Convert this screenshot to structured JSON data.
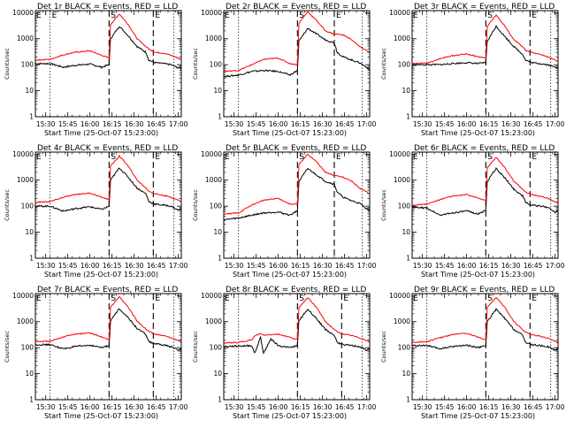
{
  "figure": {
    "common": {
      "ylabel": "Counts/sec",
      "xlabel": "Start Time (25-Oct-07 15:23:00)",
      "x_tick_labels": [
        "15:30",
        "15:45",
        "16:00",
        "16:15",
        "16:30",
        "16:45",
        "17:00"
      ],
      "y_tick_labels": [
        "1",
        "10",
        "100",
        "1000",
        "10000"
      ],
      "marker_labels": [
        "E",
        "S",
        "E"
      ],
      "colors": {
        "events": "#000000",
        "lld": "#ff0000",
        "axes": "#000000"
      }
    },
    "panels": [
      {
        "title": "Det 1r BLACK = Events, RED = LLD"
      },
      {
        "title": "Det 2r BLACK = Events, RED = LLD"
      },
      {
        "title": "Det 3r BLACK = Events, RED = LLD"
      },
      {
        "title": "Det 4r BLACK = Events, RED = LLD"
      },
      {
        "title": "Det 5r BLACK = Events, RED = LLD"
      },
      {
        "title": "Det 6r BLACK = Events, RED = LLD"
      },
      {
        "title": "Det 7r BLACK = Events, RED = LLD"
      },
      {
        "title": "Det 8r BLACK = Events, RED = LLD"
      },
      {
        "title": "Det 9r BLACK = Events, RED = LLD"
      }
    ]
  },
  "chart_data": [
    {
      "type": "line",
      "title": "Det 1r BLACK = Events, RED = LLD",
      "xlabel": "Start Time (25-Oct-07 15:23:00)",
      "ylabel": "Counts/sec",
      "y_scale": "log",
      "ylim": [
        1,
        12000
      ],
      "xlim": [
        "15:23",
        "17:02"
      ],
      "x": [
        "15:23",
        "15:33",
        "15:42",
        "15:50",
        "16:00",
        "16:08",
        "16:13",
        "16:14",
        "16:20",
        "16:26",
        "16:32",
        "16:38",
        "16:40",
        "16:44",
        "16:50",
        "16:55",
        "17:00",
        "17:02"
      ],
      "series": [
        {
          "name": "BLACK = Events",
          "values": [
            110,
            110,
            80,
            95,
            105,
            80,
            100,
            1000,
            3000,
            1300,
            500,
            300,
            150,
            120,
            110,
            100,
            75,
            80
          ]
        },
        {
          "name": "RED = LLD",
          "values": [
            150,
            160,
            240,
            300,
            340,
            230,
            180,
            3500,
            9000,
            3500,
            1000,
            500,
            400,
            300,
            280,
            230,
            180,
            150
          ]
        }
      ],
      "vlines": [
        {
          "time": "15:33",
          "style": "dotted",
          "label": "E"
        },
        {
          "time": "16:13",
          "style": "dashed",
          "label": "S"
        },
        {
          "time": "16:43",
          "style": "dashed",
          "label": "E"
        },
        {
          "time": "16:57",
          "style": "dotted"
        }
      ]
    },
    {
      "type": "line",
      "title": "Det 2r BLACK = Events, RED = LLD",
      "xlabel": "Start Time (25-Oct-07 15:23:00)",
      "ylabel": "Counts/sec",
      "y_scale": "log",
      "ylim": [
        1,
        12000
      ],
      "xlim": [
        "15:23",
        "17:02"
      ],
      "x": [
        "15:23",
        "15:33",
        "15:42",
        "15:50",
        "16:00",
        "16:08",
        "16:13",
        "16:14",
        "16:20",
        "16:26",
        "16:32",
        "16:38",
        "16:40",
        "16:44",
        "16:50",
        "16:55",
        "17:00",
        "17:02"
      ],
      "series": [
        {
          "name": "BLACK = Events",
          "values": [
            35,
            40,
            55,
            60,
            55,
            40,
            60,
            800,
            2500,
            1500,
            900,
            700,
            300,
            200,
            150,
            120,
            80,
            60
          ]
        },
        {
          "name": "RED = LLD",
          "values": [
            55,
            60,
            100,
            160,
            180,
            110,
            100,
            4000,
            11000,
            5000,
            2000,
            1500,
            1500,
            1400,
            900,
            500,
            350,
            300
          ]
        }
      ],
      "vlines": [
        {
          "time": "15:33",
          "style": "dotted"
        },
        {
          "time": "16:13",
          "style": "dashed",
          "label": "S"
        },
        {
          "time": "16:38",
          "style": "dashed",
          "label": "E"
        },
        {
          "time": "16:57",
          "style": "dotted"
        }
      ]
    },
    {
      "type": "line",
      "title": "Det 3r BLACK = Events, RED = LLD",
      "xlabel": "Start Time (25-Oct-07 15:23:00)",
      "ylabel": "Counts/sec",
      "y_scale": "log",
      "ylim": [
        1,
        12000
      ],
      "xlim": [
        "15:23",
        "17:02"
      ],
      "x": [
        "15:23",
        "15:33",
        "15:42",
        "15:50",
        "16:00",
        "16:08",
        "16:13",
        "16:14",
        "16:20",
        "16:26",
        "16:32",
        "16:38",
        "16:40",
        "16:44",
        "16:50",
        "16:55",
        "17:00",
        "17:02"
      ],
      "series": [
        {
          "name": "BLACK = Events",
          "values": [
            100,
            100,
            100,
            110,
            120,
            110,
            120,
            800,
            3000,
            1200,
            500,
            250,
            150,
            120,
            110,
            100,
            80,
            80
          ]
        },
        {
          "name": "RED = LLD",
          "values": [
            110,
            115,
            170,
            220,
            260,
            200,
            180,
            3000,
            8000,
            3000,
            900,
            500,
            350,
            300,
            250,
            200,
            150,
            130
          ]
        }
      ],
      "vlines": [
        {
          "time": "15:33",
          "style": "dotted"
        },
        {
          "time": "16:13",
          "style": "dashed",
          "label": "S"
        },
        {
          "time": "16:43",
          "style": "dashed",
          "label": "E"
        },
        {
          "time": "16:57",
          "style": "dotted"
        }
      ]
    },
    {
      "type": "line",
      "title": "Det 4r BLACK = Events, RED = LLD",
      "xlabel": "Start Time (25-Oct-07 15:23:00)",
      "ylabel": "Counts/sec",
      "y_scale": "log",
      "ylim": [
        1,
        12000
      ],
      "xlim": [
        "15:23",
        "17:02"
      ],
      "x": [
        "15:23",
        "15:33",
        "15:42",
        "15:50",
        "16:00",
        "16:08",
        "16:13",
        "16:14",
        "16:20",
        "16:26",
        "16:32",
        "16:38",
        "16:40",
        "16:44",
        "16:50",
        "16:55",
        "17:00",
        "17:02"
      ],
      "series": [
        {
          "name": "BLACK = Events",
          "values": [
            100,
            100,
            65,
            80,
            95,
            75,
            100,
            1000,
            3000,
            1300,
            500,
            300,
            150,
            120,
            110,
            100,
            70,
            80
          ]
        },
        {
          "name": "RED = LLD",
          "values": [
            140,
            150,
            220,
            280,
            320,
            220,
            180,
            3500,
            8500,
            3500,
            1000,
            500,
            380,
            300,
            260,
            220,
            170,
            150
          ]
        }
      ],
      "vlines": [
        {
          "time": "15:33",
          "style": "dotted"
        },
        {
          "time": "16:13",
          "style": "dashed",
          "label": "S"
        },
        {
          "time": "16:43",
          "style": "dashed",
          "label": "E"
        },
        {
          "time": "16:57",
          "style": "dotted"
        }
      ]
    },
    {
      "type": "line",
      "title": "Det 5r BLACK = Events, RED = LLD",
      "xlabel": "Start Time (25-Oct-07 15:23:00)",
      "ylabel": "Counts/sec",
      "y_scale": "log",
      "ylim": [
        1,
        12000
      ],
      "xlim": [
        "15:23",
        "17:02"
      ],
      "x": [
        "15:23",
        "15:33",
        "15:42",
        "15:50",
        "16:00",
        "16:08",
        "16:13",
        "16:14",
        "16:20",
        "16:26",
        "16:32",
        "16:38",
        "16:40",
        "16:44",
        "16:50",
        "16:55",
        "17:00",
        "17:02"
      ],
      "series": [
        {
          "name": "BLACK = Events",
          "values": [
            30,
            35,
            45,
            55,
            60,
            45,
            70,
            900,
            2800,
            1600,
            900,
            700,
            350,
            220,
            160,
            130,
            80,
            70
          ]
        },
        {
          "name": "RED = LLD",
          "values": [
            50,
            55,
            110,
            170,
            200,
            120,
            120,
            4000,
            10000,
            5000,
            2000,
            1500,
            1500,
            1300,
            900,
            500,
            350,
            300
          ]
        }
      ],
      "vlines": [
        {
          "time": "15:33",
          "style": "dotted"
        },
        {
          "time": "16:13",
          "style": "dashed",
          "label": "S"
        },
        {
          "time": "16:38",
          "style": "dashed",
          "label": "E"
        },
        {
          "time": "16:57",
          "style": "dotted"
        }
      ]
    },
    {
      "type": "line",
      "title": "Det 6r BLACK = Events, RED = LLD",
      "xlabel": "Start Time (25-Oct-07 15:23:00)",
      "ylabel": "Counts/sec",
      "y_scale": "log",
      "ylim": [
        1,
        12000
      ],
      "xlim": [
        "15:23",
        "17:02"
      ],
      "x": [
        "15:23",
        "15:33",
        "15:42",
        "15:50",
        "16:00",
        "16:08",
        "16:13",
        "16:14",
        "16:20",
        "16:26",
        "16:32",
        "16:38",
        "16:40",
        "16:44",
        "16:50",
        "16:55",
        "17:00",
        "17:02"
      ],
      "series": [
        {
          "name": "BLACK = Events",
          "values": [
            90,
            85,
            45,
            55,
            65,
            50,
            70,
            900,
            2800,
            1200,
            450,
            250,
            140,
            110,
            100,
            90,
            60,
            70
          ]
        },
        {
          "name": "RED = LLD",
          "values": [
            110,
            120,
            180,
            240,
            280,
            200,
            170,
            3000,
            7500,
            3000,
            900,
            450,
            350,
            280,
            240,
            200,
            150,
            130
          ]
        }
      ],
      "vlines": [
        {
          "time": "15:33",
          "style": "dotted"
        },
        {
          "time": "16:13",
          "style": "dashed",
          "label": "S"
        },
        {
          "time": "16:43",
          "style": "dashed",
          "label": "E"
        },
        {
          "time": "16:57",
          "style": "dotted"
        }
      ]
    },
    {
      "type": "line",
      "title": "Det 7r BLACK = Events, RED = LLD",
      "xlabel": "Start Time (25-Oct-07 15:23:00)",
      "ylabel": "Counts/sec",
      "y_scale": "log",
      "ylim": [
        1,
        12000
      ],
      "xlim": [
        "15:23",
        "17:02"
      ],
      "x": [
        "15:23",
        "15:33",
        "15:42",
        "15:50",
        "16:00",
        "16:08",
        "16:13",
        "16:14",
        "16:20",
        "16:26",
        "16:32",
        "16:38",
        "16:40",
        "16:44",
        "16:50",
        "16:55",
        "17:00",
        "17:02"
      ],
      "series": [
        {
          "name": "BLACK = Events",
          "values": [
            130,
            130,
            90,
            110,
            125,
            100,
            120,
            1100,
            3200,
            1400,
            550,
            320,
            170,
            140,
            125,
            110,
            80,
            90
          ]
        },
        {
          "name": "RED = LLD",
          "values": [
            170,
            180,
            260,
            330,
            370,
            260,
            200,
            3600,
            9000,
            3600,
            1050,
            520,
            420,
            330,
            290,
            240,
            190,
            160
          ]
        }
      ],
      "vlines": [
        {
          "time": "15:33",
          "style": "dotted"
        },
        {
          "time": "16:13",
          "style": "dashed",
          "label": "S"
        },
        {
          "time": "16:43",
          "style": "dashed",
          "label": "E"
        },
        {
          "time": "16:57",
          "style": "dotted"
        }
      ]
    },
    {
      "type": "line",
      "title": "Det 8r BLACK = Events, RED = LLD",
      "xlabel": "Start Time (25-Oct-07 15:23:00)",
      "ylabel": "Counts/sec",
      "y_scale": "log",
      "ylim": [
        1,
        12000
      ],
      "xlim": [
        "15:23",
        "17:02"
      ],
      "x": [
        "15:23",
        "15:33",
        "15:42",
        "15:44",
        "15:48",
        "15:50",
        "15:55",
        "16:00",
        "16:08",
        "16:13",
        "16:14",
        "16:20",
        "16:26",
        "16:32",
        "16:38",
        "16:40",
        "16:44",
        "16:50",
        "16:55",
        "17:00",
        "17:02"
      ],
      "series": [
        {
          "name": "BLACK = Events",
          "values": [
            110,
            115,
            120,
            60,
            250,
            60,
            220,
            120,
            100,
            120,
            1100,
            3000,
            1300,
            500,
            300,
            160,
            130,
            120,
            110,
            80,
            90
          ]
        },
        {
          "name": "RED = LLD",
          "values": [
            150,
            160,
            200,
            280,
            350,
            300,
            320,
            330,
            250,
            200,
            3500,
            8500,
            3500,
            1000,
            500,
            400,
            330,
            290,
            240,
            190,
            160
          ]
        }
      ],
      "vlines": [
        {
          "time": "15:33",
          "style": "dotted"
        },
        {
          "time": "16:13",
          "style": "dashed",
          "label": "S"
        },
        {
          "time": "16:43",
          "style": "dashed",
          "label": "E"
        },
        {
          "time": "16:57",
          "style": "dotted"
        }
      ]
    },
    {
      "type": "line",
      "title": "Det 9r BLACK = Events, RED = LLD",
      "xlabel": "Start Time (25-Oct-07 15:23:00)",
      "ylabel": "Counts/sec",
      "y_scale": "log",
      "ylim": [
        1,
        12000
      ],
      "xlim": [
        "15:23",
        "17:02"
      ],
      "x": [
        "15:23",
        "15:33",
        "15:42",
        "15:50",
        "16:00",
        "16:08",
        "16:13",
        "16:14",
        "16:20",
        "16:26",
        "16:32",
        "16:38",
        "16:40",
        "16:44",
        "16:50",
        "16:55",
        "17:00",
        "17:02"
      ],
      "series": [
        {
          "name": "BLACK = Events",
          "values": [
            120,
            120,
            90,
            110,
            125,
            100,
            120,
            1000,
            3000,
            1300,
            500,
            300,
            160,
            130,
            120,
            110,
            80,
            90
          ]
        },
        {
          "name": "RED = LLD",
          "values": [
            160,
            170,
            240,
            320,
            360,
            250,
            200,
            3500,
            8500,
            3500,
            1000,
            500,
            400,
            320,
            280,
            230,
            180,
            150
          ]
        }
      ],
      "vlines": [
        {
          "time": "15:33",
          "style": "dotted"
        },
        {
          "time": "16:13",
          "style": "dashed",
          "label": "S"
        },
        {
          "time": "16:43",
          "style": "dashed",
          "label": "E"
        },
        {
          "time": "16:57",
          "style": "dotted"
        }
      ]
    }
  ]
}
